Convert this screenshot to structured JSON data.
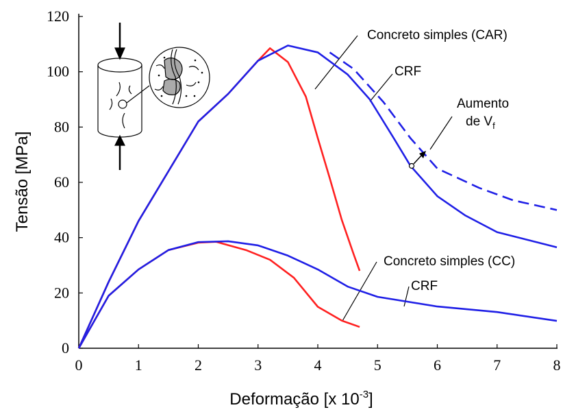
{
  "chart_data": {
    "type": "line",
    "ylabel": "Tensão [MPa]",
    "xlabel_parts": [
      "Deformação [x 10",
      "-3",
      "]"
    ],
    "xlim": [
      0,
      8
    ],
    "xticks": [
      0,
      1,
      2,
      3,
      4,
      5,
      6,
      7,
      8
    ],
    "ylim": [
      0,
      120
    ],
    "yticks": [
      0,
      20,
      40,
      60,
      80,
      100,
      120
    ],
    "annotations": [
      "Concreto simples (CAR)",
      "CRF",
      "Aumento",
      "de V",
      "f",
      "Concreto simples (CC)",
      "CRF"
    ],
    "series": [
      {
        "color": "#ff2020",
        "dash": false,
        "x": [
          0,
          0.5,
          1,
          1.5,
          2,
          2.5,
          3,
          3.2,
          3.5,
          3.8,
          4.0,
          4.2,
          4.4,
          4.6,
          4.7
        ],
        "values": [
          0,
          24,
          46,
          64,
          82,
          92,
          104,
          108.5,
          103.5,
          91,
          76,
          61.5,
          46.5,
          34,
          28
        ]
      },
      {
        "color": "#1f1fe6",
        "dash": false,
        "x": [
          0,
          0.5,
          1,
          1.5,
          2,
          2.5,
          3,
          3.5,
          4,
          4.5,
          4.87,
          5.27,
          5.55,
          6,
          6.47,
          7,
          8
        ],
        "values": [
          0,
          24,
          46,
          64,
          82,
          92,
          104,
          109.5,
          107,
          99,
          90,
          76,
          66,
          55,
          48,
          42,
          36.5
        ]
      },
      {
        "color": "#1f1fe6",
        "dash": true,
        "x": [
          4.2,
          4.6,
          5.1,
          5.55,
          6,
          6.7,
          7.27,
          8
        ],
        "values": [
          107,
          101,
          89,
          76,
          65,
          58,
          53.5,
          50
        ]
      },
      {
        "color": "#ff2020",
        "dash": false,
        "x": [
          0,
          0.5,
          1,
          1.5,
          2,
          2.3,
          2.8,
          3.2,
          3.6,
          4.0,
          4.4,
          4.7
        ],
        "values": [
          0,
          19,
          28.5,
          35.5,
          38.2,
          38.5,
          35.5,
          32,
          25.5,
          15,
          10,
          7.7
        ]
      },
      {
        "color": "#1f1fe6",
        "dash": false,
        "x": [
          0,
          0.5,
          1,
          1.5,
          2,
          2.5,
          3,
          3.5,
          4,
          4.5,
          5,
          6,
          7,
          8
        ],
        "values": [
          0,
          19,
          28.5,
          35.5,
          38.4,
          38.7,
          37.2,
          33.5,
          28.5,
          22.3,
          18.6,
          15.1,
          13.1,
          9.9
        ]
      }
    ]
  }
}
